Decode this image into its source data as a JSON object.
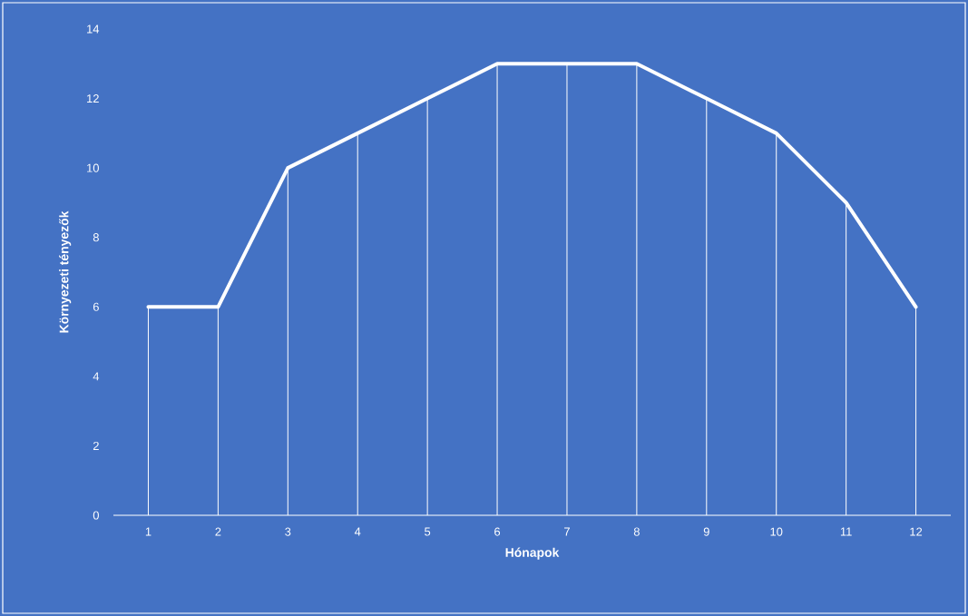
{
  "chart_data": {
    "type": "line",
    "xlabel": "Hónapok",
    "ylabel": "Környezeti tényezők",
    "categories": [
      "1",
      "2",
      "3",
      "4",
      "5",
      "6",
      "7",
      "8",
      "9",
      "10",
      "11",
      "12"
    ],
    "series": [
      {
        "color": "#ffffff",
        "values": [
          6,
          6,
          10,
          11,
          12,
          13,
          13,
          13,
          12,
          11,
          9,
          6
        ]
      },
      {
        "type": "bar",
        "color": "#ffffff",
        "values": [
          6,
          6,
          10,
          11,
          12,
          13,
          13,
          13,
          12,
          11,
          9,
          6
        ]
      }
    ],
    "ylim": [
      0,
      14
    ],
    "yticks": [
      0,
      2,
      4,
      6,
      8,
      10,
      12,
      14
    ],
    "grid": false,
    "marker": "none",
    "line_style": "solid"
  }
}
